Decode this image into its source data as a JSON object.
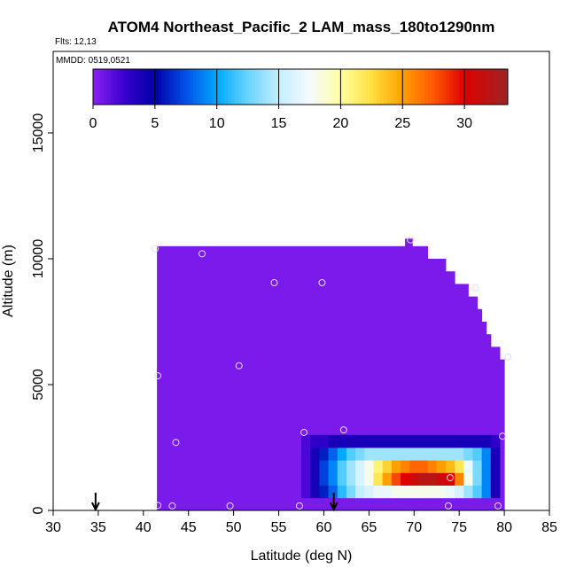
{
  "chart_data": {
    "type": "heatmap",
    "title": "ATOM4 Northeast_Pacific_2 LAM_mass_180to1290nm",
    "subtitle": "Flts: 12,13",
    "annotation": "MMDD: 0519,0521",
    "xlabel": "Latitude (deg N)",
    "ylabel": "Altitude (m)",
    "xlim": [
      30,
      85
    ],
    "xticks": [
      30,
      35,
      40,
      45,
      50,
      55,
      60,
      65,
      70,
      75,
      80,
      85
    ],
    "ylim": [
      0,
      18240
    ],
    "yticks": [
      0,
      5000,
      10000,
      15000
    ],
    "clim": [
      0,
      33.5
    ],
    "cticks": [
      0,
      5,
      10,
      15,
      20,
      25,
      30
    ],
    "colorscale": [
      [
        0,
        "#8a22f2"
      ],
      [
        2.5,
        "#3a00d0"
      ],
      [
        5,
        "#0000a8"
      ],
      [
        7.5,
        "#0050e8"
      ],
      [
        10,
        "#00a8ff"
      ],
      [
        12.5,
        "#66d4ff"
      ],
      [
        15,
        "#c4eeff"
      ],
      [
        17.5,
        "#f4fbff"
      ],
      [
        20,
        "#ffffa0"
      ],
      [
        22.5,
        "#ffe040"
      ],
      [
        25,
        "#ffa000"
      ],
      [
        27.5,
        "#ff5800"
      ],
      [
        30,
        "#e00000"
      ],
      [
        33.5,
        "#9c2424"
      ]
    ],
    "profile": {
      "value": 0.5,
      "lat_edges": [
        41.5,
        69,
        69.8,
        71.5,
        73.5,
        74.5,
        76,
        77,
        77.5,
        78,
        78.5,
        79.5,
        80
      ],
      "tops": [
        10500,
        10800,
        10500,
        10000,
        9500,
        9000,
        8500,
        8000,
        7500,
        7000,
        6500,
        6000
      ]
    },
    "plume": {
      "lat_edges": [
        57.5,
        58.5,
        59.5,
        60.5,
        61.5,
        62.5,
        63.5,
        64.5,
        65.5,
        66.5,
        67.5,
        68.5,
        69.5,
        70.5,
        71.5,
        72.5,
        73.5,
        74.5,
        75.5,
        76.5,
        77.5,
        78.5,
        79.5
      ],
      "alt_edges": [
        500,
        1000,
        1500,
        2000,
        2500,
        3000
      ],
      "values": [
        [
          2,
          4,
          6,
          8,
          11,
          13,
          15,
          16,
          17,
          17,
          18,
          18,
          18,
          18,
          18,
          18,
          17,
          16,
          14,
          12,
          9,
          4
        ],
        [
          2,
          4,
          7,
          9,
          12,
          14,
          16,
          18,
          22,
          25,
          28,
          30,
          31,
          32,
          32,
          31,
          30,
          26,
          18,
          13,
          9,
          4
        ],
        [
          2,
          4,
          7,
          9,
          12,
          14,
          16,
          18,
          21,
          23,
          25,
          26,
          27,
          27,
          26,
          25,
          24,
          22,
          17,
          13,
          9,
          4
        ],
        [
          2,
          4,
          6,
          8,
          10,
          12,
          13,
          14,
          14,
          14,
          14,
          14,
          14,
          14,
          14,
          14,
          14,
          14,
          13,
          12,
          9,
          4
        ],
        [
          2,
          3,
          3,
          4,
          4,
          4,
          4,
          4,
          4,
          4,
          4,
          4,
          4,
          4,
          4,
          4,
          4,
          4,
          4,
          4,
          4,
          3
        ]
      ]
    },
    "points": {
      "lat": [
        41.3,
        46.5,
        54.5,
        59.8,
        69.6,
        76.8,
        80.4,
        41.6,
        50.6,
        43.6,
        57.8,
        62.2,
        79.8,
        74.0,
        41.6,
        43.2,
        49.6,
        57.3,
        73.8,
        79.3
      ],
      "alt": [
        10400,
        10200,
        9050,
        9050,
        10750,
        8850,
        6100,
        5350,
        5750,
        2700,
        3100,
        3200,
        2950,
        1300,
        200,
        180,
        180,
        180,
        180,
        180
      ]
    },
    "arrows": [
      34.7,
      61.1
    ]
  }
}
